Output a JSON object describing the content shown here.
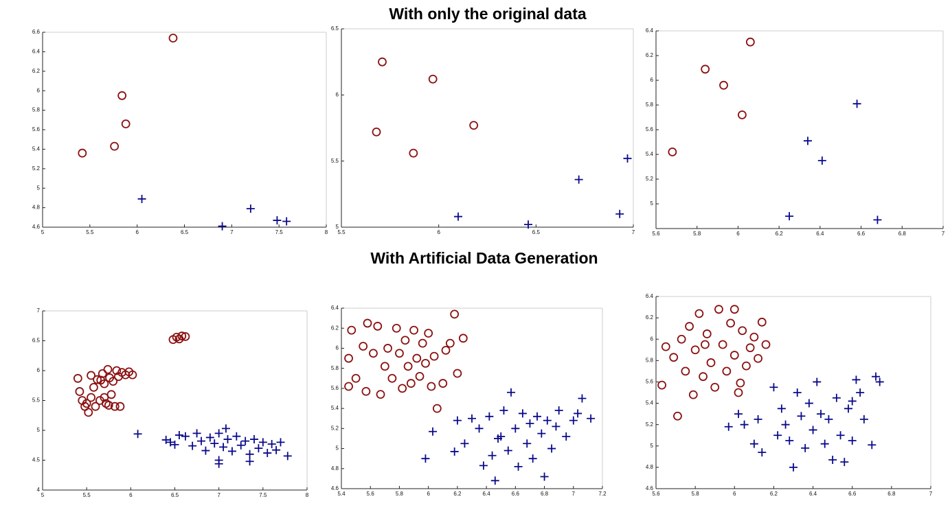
{
  "headings": [
    "With only the original data",
    "With Artificial Data Generation"
  ],
  "chart_data": [
    {
      "type": "scatter",
      "xlim": [
        5,
        8
      ],
      "ylim": [
        4.6,
        6.6
      ],
      "xticks": [
        5,
        5.5,
        6,
        6.5,
        7,
        7.5,
        8
      ],
      "yticks": [
        4.6,
        4.8,
        5,
        5.2,
        5.4,
        5.6,
        5.8,
        6,
        6.2,
        6.4,
        6.6
      ],
      "series": [
        {
          "color": "#8b1010",
          "marker": "circle",
          "x": [
            5.42,
            5.76,
            5.84,
            5.88,
            6.38
          ],
          "values": [
            5.36,
            5.43,
            5.95,
            5.66,
            6.54
          ]
        },
        {
          "color": "#0a0a8b",
          "marker": "plus",
          "x": [
            6.05,
            6.9,
            7.2,
            7.48,
            7.58
          ],
          "values": [
            4.89,
            4.61,
            4.79,
            4.67,
            4.66
          ]
        }
      ]
    },
    {
      "type": "scatter",
      "xlim": [
        5.5,
        7
      ],
      "ylim": [
        5,
        6.5
      ],
      "xticks": [
        5.5,
        6,
        6.5,
        7
      ],
      "yticks": [
        5,
        5.5,
        6,
        6.5
      ],
      "series": [
        {
          "color": "#8b1010",
          "marker": "circle",
          "x": [
            5.68,
            5.71,
            5.87,
            5.97,
            6.18
          ],
          "values": [
            5.72,
            6.25,
            5.56,
            6.12,
            5.77
          ]
        },
        {
          "color": "#0a0a8b",
          "marker": "plus",
          "x": [
            6.1,
            6.46,
            6.72,
            6.93,
            6.97
          ],
          "values": [
            5.08,
            5.02,
            5.36,
            5.1,
            5.52
          ]
        }
      ]
    },
    {
      "type": "scatter",
      "xlim": [
        5.6,
        7
      ],
      "ylim": [
        4.8,
        6.4
      ],
      "xticks": [
        5.6,
        5.8,
        6,
        6.2,
        6.4,
        6.6,
        6.8,
        7
      ],
      "yticks": [
        5,
        5.2,
        5.4,
        5.6,
        5.8,
        6,
        6.2,
        6.4
      ],
      "series": [
        {
          "color": "#8b1010",
          "marker": "circle",
          "x": [
            5.68,
            5.84,
            5.93,
            6.02,
            6.06
          ],
          "values": [
            5.42,
            6.09,
            5.96,
            5.72,
            6.31
          ]
        },
        {
          "color": "#0a0a8b",
          "marker": "plus",
          "x": [
            6.25,
            6.34,
            6.41,
            6.58,
            6.68
          ],
          "values": [
            4.9,
            5.51,
            5.35,
            5.81,
            4.87
          ]
        }
      ]
    },
    {
      "type": "scatter",
      "xlim": [
        5,
        8
      ],
      "ylim": [
        4,
        7
      ],
      "xticks": [
        5,
        5.5,
        6,
        6.5,
        7,
        7.5,
        8
      ],
      "yticks": [
        4,
        4.5,
        5,
        5.5,
        6,
        6.5,
        7
      ],
      "series": [
        {
          "color": "#8b1010",
          "marker": "circle",
          "x": [
            5.4,
            5.42,
            5.45,
            5.48,
            5.5,
            5.52,
            5.55,
            5.55,
            5.58,
            5.6,
            5.62,
            5.65,
            5.68,
            5.7,
            5.72,
            5.74,
            5.76,
            5.78,
            5.8,
            5.82,
            5.84,
            5.86,
            5.88,
            5.9,
            5.94,
            5.98,
            6.02,
            5.7,
            5.75,
            5.66,
            6.48,
            6.52,
            6.55,
            6.58,
            6.62
          ],
          "values": [
            5.87,
            5.65,
            5.5,
            5.4,
            5.45,
            5.3,
            5.55,
            5.92,
            5.72,
            5.4,
            5.85,
            5.5,
            5.95,
            5.78,
            5.45,
            6.02,
            5.88,
            5.6,
            5.82,
            5.4,
            6.0,
            5.9,
            5.4,
            5.97,
            5.93,
            5.98,
            5.93,
            5.55,
            5.42,
            5.84,
            6.52,
            6.56,
            6.53,
            6.58,
            6.57
          ]
        },
        {
          "color": "#0a0a8b",
          "marker": "plus",
          "x": [
            6.08,
            6.4,
            6.45,
            6.5,
            6.55,
            6.62,
            6.7,
            6.75,
            6.8,
            6.85,
            6.9,
            6.95,
            7.0,
            7.0,
            7.05,
            7.08,
            7.1,
            7.15,
            7.2,
            7.25,
            7.3,
            7.35,
            7.4,
            7.45,
            7.5,
            7.55,
            7.6,
            7.65,
            7.7,
            7.78,
            7.0,
            7.35
          ],
          "values": [
            4.94,
            4.84,
            4.8,
            4.76,
            4.92,
            4.9,
            4.74,
            4.95,
            4.82,
            4.66,
            4.88,
            4.78,
            4.5,
            4.95,
            4.72,
            5.03,
            4.85,
            4.65,
            4.9,
            4.75,
            4.82,
            4.6,
            4.85,
            4.7,
            4.8,
            4.62,
            4.77,
            4.67,
            4.8,
            4.57,
            4.44,
            4.48
          ]
        }
      ]
    },
    {
      "type": "scatter",
      "xlim": [
        5.4,
        7.2
      ],
      "ylim": [
        4.6,
        6.4
      ],
      "xticks": [
        5.4,
        5.6,
        5.8,
        6,
        6.2,
        6.4,
        6.6,
        6.8,
        7,
        7.2
      ],
      "yticks": [
        4.6,
        4.8,
        5,
        5.2,
        5.4,
        5.6,
        5.8,
        6,
        6.2,
        6.4
      ],
      "series": [
        {
          "color": "#8b1010",
          "marker": "circle",
          "x": [
            5.45,
            5.45,
            5.47,
            5.5,
            5.55,
            5.57,
            5.58,
            5.62,
            5.65,
            5.67,
            5.7,
            5.72,
            5.75,
            5.78,
            5.8,
            5.82,
            5.84,
            5.86,
            5.88,
            5.9,
            5.92,
            5.94,
            5.96,
            5.98,
            6.0,
            6.02,
            6.04,
            6.06,
            6.1,
            6.12,
            6.15,
            6.18,
            6.2,
            6.24
          ],
          "values": [
            5.62,
            5.9,
            6.18,
            5.7,
            6.02,
            5.57,
            6.25,
            5.95,
            6.22,
            5.54,
            5.82,
            6.0,
            5.7,
            6.2,
            5.95,
            5.6,
            6.08,
            5.82,
            5.65,
            6.18,
            5.9,
            5.72,
            6.05,
            5.85,
            6.15,
            5.62,
            5.92,
            5.4,
            5.65,
            5.98,
            6.05,
            6.34,
            5.75,
            6.1
          ]
        },
        {
          "color": "#0a0a8b",
          "marker": "plus",
          "x": [
            5.98,
            6.03,
            6.18,
            6.2,
            6.25,
            6.3,
            6.35,
            6.38,
            6.42,
            6.44,
            6.46,
            6.5,
            6.52,
            6.55,
            6.57,
            6.6,
            6.62,
            6.65,
            6.68,
            6.7,
            6.72,
            6.75,
            6.78,
            6.8,
            6.82,
            6.85,
            6.88,
            6.9,
            6.95,
            7.0,
            7.03,
            7.06,
            7.12,
            6.48
          ],
          "values": [
            4.9,
            5.17,
            4.97,
            5.28,
            5.05,
            5.3,
            5.2,
            4.83,
            5.32,
            4.93,
            4.68,
            5.12,
            5.38,
            4.98,
            5.56,
            5.2,
            4.82,
            5.35,
            5.05,
            5.25,
            4.9,
            5.32,
            5.15,
            4.72,
            5.28,
            5.0,
            5.22,
            5.38,
            5.12,
            5.28,
            5.35,
            5.5,
            5.3,
            5.1
          ]
        }
      ]
    },
    {
      "type": "scatter",
      "xlim": [
        5.6,
        7
      ],
      "ylim": [
        4.6,
        6.4
      ],
      "xticks": [
        5.6,
        5.8,
        6,
        6.2,
        6.4,
        6.6,
        6.8,
        7
      ],
      "yticks": [
        4.6,
        4.8,
        5,
        5.2,
        5.4,
        5.6,
        5.8,
        6,
        6.2,
        6.4
      ],
      "series": [
        {
          "color": "#8b1010",
          "marker": "circle",
          "x": [
            5.63,
            5.65,
            5.69,
            5.71,
            5.73,
            5.75,
            5.77,
            5.79,
            5.8,
            5.82,
            5.84,
            5.86,
            5.88,
            5.9,
            5.92,
            5.94,
            5.96,
            5.98,
            6.0,
            6.02,
            6.04,
            6.06,
            6.08,
            6.1,
            6.12,
            6.14,
            6.16,
            6.0,
            5.85,
            6.03
          ],
          "values": [
            5.57,
            5.93,
            5.83,
            5.28,
            6.0,
            5.7,
            6.12,
            5.48,
            5.9,
            6.24,
            5.65,
            6.05,
            5.78,
            5.55,
            6.28,
            5.95,
            5.7,
            6.15,
            5.85,
            5.5,
            6.08,
            5.75,
            5.92,
            6.02,
            5.82,
            6.16,
            5.95,
            6.28,
            5.95,
            5.59
          ]
        },
        {
          "color": "#0a0a8b",
          "marker": "plus",
          "x": [
            5.97,
            6.02,
            6.05,
            6.1,
            6.12,
            6.14,
            6.2,
            6.22,
            6.24,
            6.26,
            6.28,
            6.3,
            6.32,
            6.34,
            6.36,
            6.38,
            6.4,
            6.42,
            6.44,
            6.46,
            6.48,
            6.5,
            6.52,
            6.54,
            6.56,
            6.58,
            6.6,
            6.62,
            6.64,
            6.66,
            6.7,
            6.72,
            6.74,
            6.6
          ],
          "values": [
            5.18,
            5.3,
            5.2,
            5.02,
            5.25,
            4.94,
            5.55,
            5.1,
            5.35,
            5.2,
            5.05,
            4.8,
            5.5,
            5.28,
            4.98,
            5.4,
            5.15,
            5.6,
            5.3,
            5.02,
            5.25,
            4.87,
            5.45,
            5.1,
            4.85,
            5.35,
            5.05,
            5.62,
            5.5,
            5.25,
            5.01,
            5.65,
            5.6,
            5.42
          ]
        }
      ]
    }
  ]
}
